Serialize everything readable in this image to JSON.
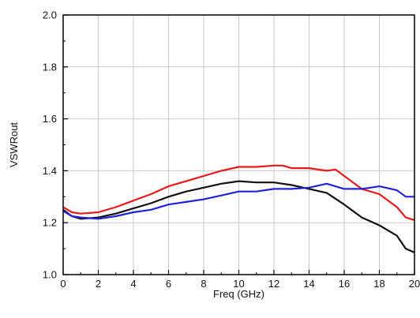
{
  "chart_data": {
    "type": "line",
    "title": "",
    "xlabel": "Freq (GHz)",
    "ylabel": "VSWRout",
    "xlim": [
      0,
      20
    ],
    "ylim": [
      1.0,
      2.0
    ],
    "xticks": [
      "0",
      "2",
      "4",
      "6",
      "8",
      "10",
      "12",
      "14",
      "16",
      "18",
      "20"
    ],
    "yticks": [
      "1.0",
      "1.2",
      "1.4",
      "1.6",
      "1.8",
      "2.0"
    ],
    "grid": true,
    "legend": "none",
    "series": [
      {
        "color": "#e8191b",
        "x": [
          0,
          0.5,
          1,
          2,
          3,
          4,
          5,
          6,
          7,
          8,
          9,
          10,
          11,
          12,
          12.5,
          13,
          14,
          15,
          15.5,
          16,
          17,
          18,
          19,
          19.5,
          20
        ],
        "y": [
          1.26,
          1.24,
          1.235,
          1.24,
          1.26,
          1.285,
          1.31,
          1.34,
          1.36,
          1.38,
          1.4,
          1.415,
          1.415,
          1.42,
          1.42,
          1.41,
          1.41,
          1.4,
          1.405,
          1.38,
          1.33,
          1.31,
          1.26,
          1.22,
          1.21
        ]
      },
      {
        "color": "#111111",
        "x": [
          0,
          0.5,
          1,
          2,
          3,
          4,
          5,
          6,
          7,
          8,
          9,
          10,
          11,
          12,
          13,
          14,
          15,
          16,
          17,
          18,
          19,
          19.5,
          20
        ],
        "y": [
          1.25,
          1.225,
          1.215,
          1.22,
          1.235,
          1.255,
          1.275,
          1.3,
          1.32,
          1.335,
          1.35,
          1.36,
          1.355,
          1.355,
          1.345,
          1.33,
          1.315,
          1.27,
          1.22,
          1.19,
          1.15,
          1.1,
          1.085
        ]
      },
      {
        "color": "#2323d6",
        "x": [
          0,
          0.5,
          1,
          2,
          3,
          4,
          5,
          6,
          7,
          8,
          9,
          10,
          11,
          12,
          13,
          14,
          15,
          16,
          17,
          17.5,
          18,
          19,
          19.5,
          20
        ],
        "y": [
          1.245,
          1.225,
          1.22,
          1.215,
          1.225,
          1.24,
          1.25,
          1.27,
          1.28,
          1.29,
          1.305,
          1.32,
          1.32,
          1.33,
          1.33,
          1.335,
          1.35,
          1.33,
          1.33,
          1.335,
          1.34,
          1.325,
          1.3,
          1.3
        ]
      }
    ]
  }
}
